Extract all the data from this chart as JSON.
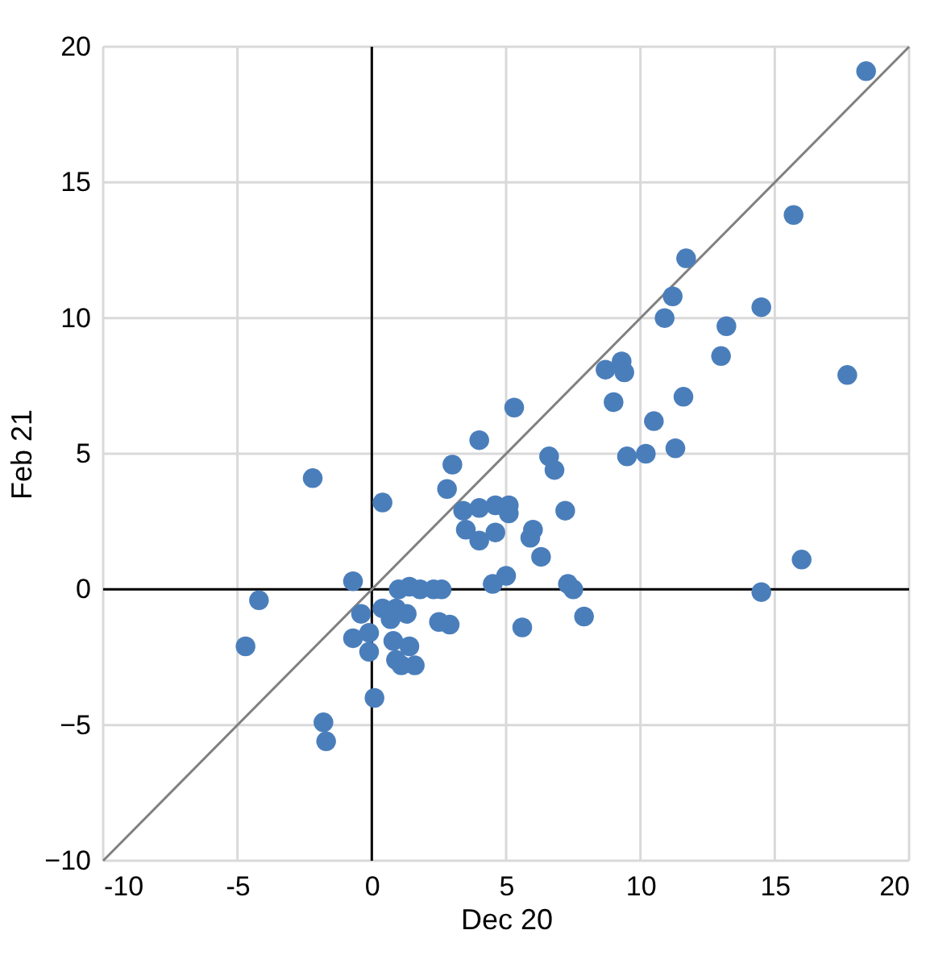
{
  "chart_data": {
    "type": "scatter",
    "xlabel": "Dec 20",
    "ylabel": "Feb 21",
    "xlim": [
      -10,
      20
    ],
    "ylim": [
      -10,
      20
    ],
    "xticks": [
      -10,
      -5,
      0,
      5,
      10,
      15,
      20
    ],
    "yticks": [
      -10,
      -5,
      0,
      5,
      10,
      15,
      20
    ],
    "grid": true,
    "series": [
      {
        "marker": "circle",
        "color": "#4a7ebb",
        "x": [
          18.4,
          15.7,
          11.7,
          11.2,
          14.5,
          10.9,
          13.2,
          13.0,
          8.7,
          9.3,
          9.4,
          17.7,
          11.6,
          9.0,
          5.3,
          10.5,
          11.3,
          4.0,
          9.5,
          10.2,
          6.6,
          6.8,
          -2.2,
          0.4,
          3.0,
          2.8,
          7.2,
          4.0,
          4.6,
          5.1,
          5.1,
          3.4,
          3.5,
          4.6,
          4.0,
          6.0,
          5.9,
          6.3,
          5.0,
          4.5,
          7.3,
          7.5,
          7.9,
          5.6,
          14.5,
          16.0,
          -0.7,
          -4.2,
          -4.7,
          -0.4,
          0.4,
          0.9,
          0.7,
          1.3,
          1.0,
          1.4,
          1.8,
          2.3,
          2.6,
          2.5,
          2.9,
          -0.7,
          -0.1,
          -0.1,
          0.8,
          1.4,
          0.9,
          1.1,
          1.6,
          0.1,
          -1.8,
          -1.7
        ],
        "values": [
          19.1,
          13.8,
          12.2,
          10.8,
          10.4,
          10.0,
          9.7,
          8.6,
          8.1,
          8.4,
          8.0,
          7.9,
          7.1,
          6.9,
          6.7,
          6.2,
          5.2,
          5.5,
          4.9,
          5.0,
          4.9,
          4.4,
          4.1,
          3.2,
          4.6,
          3.7,
          2.9,
          3.0,
          3.1,
          3.1,
          2.8,
          2.9,
          2.2,
          2.1,
          1.8,
          2.2,
          1.9,
          1.2,
          0.5,
          0.2,
          0.2,
          0.0,
          -1.0,
          -1.4,
          -0.1,
          1.1,
          0.3,
          -0.4,
          -2.1,
          -0.9,
          -0.7,
          -0.7,
          -1.1,
          -0.9,
          0.0,
          0.1,
          0.0,
          0.0,
          0.0,
          -1.2,
          -1.3,
          -1.8,
          -1.6,
          -2.3,
          -1.9,
          -2.1,
          -2.6,
          -2.8,
          -2.8,
          -4.0,
          -4.9,
          -5.6
        ]
      },
      {
        "type": "line",
        "marker": "none",
        "color": "#808080",
        "x": [
          -10,
          20
        ],
        "values": [
          -10,
          20
        ]
      }
    ]
  }
}
